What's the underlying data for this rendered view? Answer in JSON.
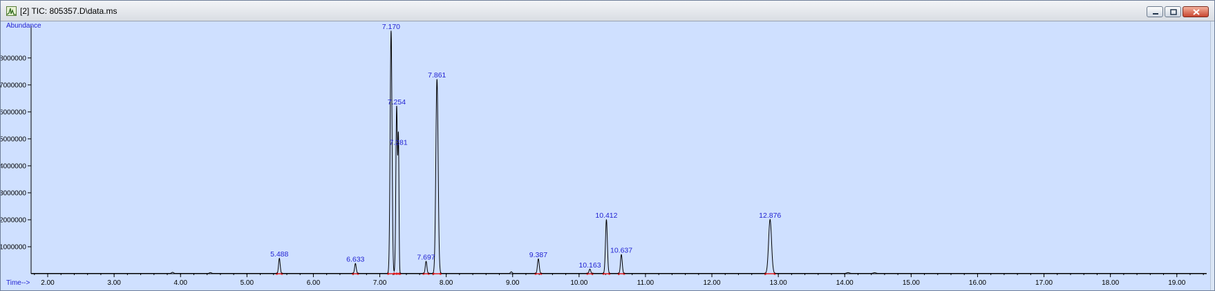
{
  "window": {
    "title": "[2] TIC: 805357.D\\data.ms",
    "minimize_label": "minimize",
    "maximize_label": "maximize",
    "close_label": "close"
  },
  "colors": {
    "plot_background": "#cfe0ff",
    "trace": "#000000",
    "label": "#1f1fd1",
    "baseline_marker": "#e01b1b"
  },
  "chart_data": {
    "type": "line",
    "title": "TIC: 805357.D\\data.ms",
    "ylabel": "Abundance",
    "xlabel": "Time-->",
    "xlim": [
      1.75,
      19.45
    ],
    "ylim": [
      0,
      9200000
    ],
    "x_ticks": [
      "2.00",
      "3.00",
      "4.00",
      "5.00",
      "6.00",
      "7.00",
      "8.00",
      "9.00",
      "10.00",
      "11.00",
      "12.00",
      "13.00",
      "14.00",
      "15.00",
      "16.00",
      "17.00",
      "18.00",
      "19.00"
    ],
    "y_ticks": [
      "1000000",
      "2000000",
      "3000000",
      "4000000",
      "5000000",
      "6000000",
      "7000000",
      "8000000"
    ],
    "series": [
      {
        "name": "TIC",
        "peaks": [
          {
            "rt": 3.88,
            "height": 40000,
            "width": 0.015,
            "label": ""
          },
          {
            "rt": 4.45,
            "height": 30000,
            "width": 0.015,
            "label": ""
          },
          {
            "rt": 5.488,
            "height": 560000,
            "width": 0.012,
            "label": "5.488"
          },
          {
            "rt": 6.633,
            "height": 370000,
            "width": 0.012,
            "label": "6.633"
          },
          {
            "rt": 7.17,
            "height": 9000000,
            "width": 0.014,
            "label": "7.170"
          },
          {
            "rt": 7.254,
            "height": 6200000,
            "width": 0.012,
            "label": "7.254"
          },
          {
            "rt": 7.281,
            "height": 4700000,
            "width": 0.008,
            "label": "7.281"
          },
          {
            "rt": 7.697,
            "height": 450000,
            "width": 0.012,
            "label": "7.697"
          },
          {
            "rt": 7.861,
            "height": 7200000,
            "width": 0.017,
            "label": "7.861"
          },
          {
            "rt": 8.98,
            "height": 60000,
            "width": 0.012,
            "label": ""
          },
          {
            "rt": 9.387,
            "height": 540000,
            "width": 0.013,
            "label": "9.387"
          },
          {
            "rt": 10.163,
            "height": 160000,
            "width": 0.012,
            "label": "10.163"
          },
          {
            "rt": 10.412,
            "height": 2000000,
            "width": 0.014,
            "label": "10.412"
          },
          {
            "rt": 10.637,
            "height": 700000,
            "width": 0.013,
            "label": "10.637"
          },
          {
            "rt": 12.876,
            "height": 2000000,
            "width": 0.022,
            "label": "12.876"
          },
          {
            "rt": 14.05,
            "height": 30000,
            "width": 0.02,
            "label": ""
          },
          {
            "rt": 14.45,
            "height": 25000,
            "width": 0.02,
            "label": ""
          }
        ]
      }
    ]
  }
}
